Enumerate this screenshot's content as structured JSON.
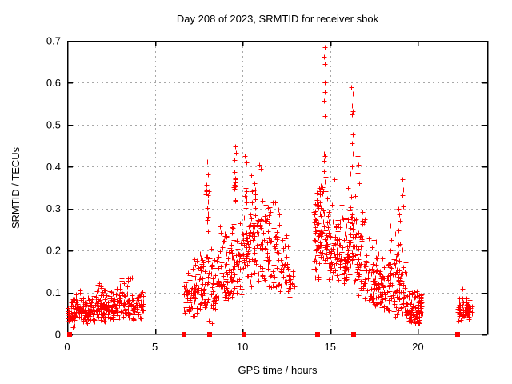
{
  "title": "Day 208 of 2023, SRMTID for receiver sbok",
  "chart_data": {
    "type": "scatter",
    "title": "Day 208 of 2023, SRMTID for receiver sbok",
    "xlabel": "GPS time / hours",
    "ylabel": "SRMTID / TECUs",
    "xlim": [
      0,
      24
    ],
    "ylim": [
      0,
      0.7
    ],
    "grid": true,
    "legend": false,
    "marker": "plus",
    "marker_color": "#ff0000",
    "grid_color": "#a8a8a8",
    "axis_color": "#000000",
    "background_color": "#ffffff",
    "xticks": [
      {
        "v": 0,
        "label": "0"
      },
      {
        "v": 5,
        "label": "5"
      },
      {
        "v": 10,
        "label": "10"
      },
      {
        "v": 15,
        "label": "15"
      },
      {
        "v": 20,
        "label": "20"
      }
    ],
    "yticks": [
      {
        "v": 0.0,
        "label": "0"
      },
      {
        "v": 0.1,
        "label": "0.1"
      },
      {
        "v": 0.2,
        "label": "0.2"
      },
      {
        "v": 0.3,
        "label": "0.3"
      },
      {
        "v": 0.4,
        "label": "0.4"
      },
      {
        "v": 0.5,
        "label": "0.5"
      },
      {
        "v": 0.6,
        "label": "0.6"
      },
      {
        "v": 0.7,
        "label": "0.7"
      }
    ],
    "seed": 2023208,
    "cluster_segments": [
      [
        0.05,
        0.5,
        40,
        0.02,
        0.095,
        1.4
      ],
      [
        0.5,
        1.05,
        50,
        0.03,
        0.115,
        1.4
      ],
      [
        1.05,
        1.6,
        48,
        0.025,
        0.1,
        1.4
      ],
      [
        1.6,
        2.25,
        60,
        0.03,
        0.135,
        1.5
      ],
      [
        2.25,
        2.95,
        55,
        0.03,
        0.115,
        1.4
      ],
      [
        2.95,
        3.7,
        60,
        0.035,
        0.15,
        1.5
      ],
      [
        3.7,
        4.35,
        45,
        0.03,
        0.115,
        1.4
      ],
      [
        6.65,
        7.3,
        55,
        0.04,
        0.19,
        1.5
      ],
      [
        7.3,
        7.95,
        50,
        0.05,
        0.22,
        1.5
      ],
      [
        7.9,
        8.1,
        8,
        0.24,
        0.42,
        1.1
      ],
      [
        7.95,
        8.6,
        45,
        0.05,
        0.23,
        1.5
      ],
      [
        8.6,
        9.35,
        55,
        0.07,
        0.3,
        1.6
      ],
      [
        9.45,
        9.75,
        12,
        0.27,
        0.45,
        1.1
      ],
      [
        9.35,
        10.0,
        50,
        0.08,
        0.33,
        1.5
      ],
      [
        10.0,
        10.5,
        45,
        0.1,
        0.42,
        1.5
      ],
      [
        10.5,
        11.3,
        62,
        0.1,
        0.4,
        1.3
      ],
      [
        11.3,
        12.1,
        55,
        0.1,
        0.37,
        1.3
      ],
      [
        12.1,
        12.6,
        28,
        0.09,
        0.28,
        1.3
      ],
      [
        12.6,
        12.95,
        12,
        0.08,
        0.16,
        1.2
      ],
      [
        14.05,
        14.45,
        55,
        0.13,
        0.4,
        1.3
      ],
      [
        14.45,
        14.85,
        45,
        0.15,
        0.43,
        1.4
      ],
      [
        14.85,
        15.45,
        55,
        0.12,
        0.38,
        1.5
      ],
      [
        15.45,
        16.0,
        45,
        0.1,
        0.33,
        1.5
      ],
      [
        16.0,
        16.5,
        52,
        0.12,
        0.4,
        1.4
      ],
      [
        16.5,
        17.1,
        50,
        0.08,
        0.31,
        1.5
      ],
      [
        17.1,
        17.8,
        50,
        0.06,
        0.24,
        1.4
      ],
      [
        17.8,
        18.4,
        50,
        0.05,
        0.2,
        1.4
      ],
      [
        18.4,
        19.0,
        55,
        0.04,
        0.28,
        1.5
      ],
      [
        19.0,
        19.35,
        30,
        0.04,
        0.22,
        1.5
      ],
      [
        19.35,
        20.25,
        85,
        0.025,
        0.115,
        1.3
      ],
      [
        22.25,
        23.1,
        70,
        0.03,
        0.095,
        1.2
      ]
    ],
    "notable_points": [
      [
        14.68,
        0.685
      ],
      [
        14.66,
        0.662
      ],
      [
        14.7,
        0.645
      ],
      [
        14.67,
        0.601
      ],
      [
        14.69,
        0.578
      ],
      [
        14.66,
        0.556
      ],
      [
        14.71,
        0.521
      ],
      [
        14.65,
        0.431
      ],
      [
        14.7,
        0.425
      ],
      [
        14.63,
        0.414
      ],
      [
        16.22,
        0.59
      ],
      [
        16.28,
        0.575
      ],
      [
        16.24,
        0.546
      ],
      [
        16.3,
        0.532
      ],
      [
        16.25,
        0.524
      ],
      [
        16.27,
        0.476
      ],
      [
        16.23,
        0.455
      ],
      [
        16.29,
        0.431
      ],
      [
        16.26,
        0.401
      ],
      [
        16.55,
        0.425
      ],
      [
        16.62,
        0.405
      ],
      [
        16.58,
        0.386
      ],
      [
        16.66,
        0.361
      ],
      [
        19.12,
        0.37
      ],
      [
        19.16,
        0.346
      ],
      [
        19.1,
        0.331
      ],
      [
        19.18,
        0.306
      ],
      [
        18.88,
        0.3
      ],
      [
        18.92,
        0.286
      ],
      [
        18.96,
        0.271
      ],
      [
        7.97,
        0.412
      ],
      [
        8.02,
        0.381
      ],
      [
        7.95,
        0.356
      ],
      [
        8.04,
        0.332
      ],
      [
        8.0,
        0.302
      ],
      [
        7.99,
        0.272
      ],
      [
        8.03,
        0.246
      ],
      [
        9.58,
        0.448
      ],
      [
        9.62,
        0.433
      ],
      [
        9.55,
        0.415
      ],
      [
        10.15,
        0.426
      ],
      [
        10.24,
        0.411
      ],
      [
        10.95,
        0.404
      ],
      [
        11.06,
        0.395
      ],
      [
        8.28,
        0.027
      ],
      [
        8.06,
        0.032
      ],
      [
        0.3,
        0.018
      ],
      [
        22.48,
        0.021
      ],
      [
        22.55,
        0.108
      ],
      [
        12.3,
        0.155
      ],
      [
        12.8,
        0.12
      ]
    ],
    "zero_squares": [
      [
        0.12,
        0
      ],
      [
        6.68,
        0
      ],
      [
        8.1,
        0
      ],
      [
        10.1,
        0
      ],
      [
        14.3,
        0
      ],
      [
        16.35,
        0
      ],
      [
        22.28,
        0
      ]
    ]
  }
}
